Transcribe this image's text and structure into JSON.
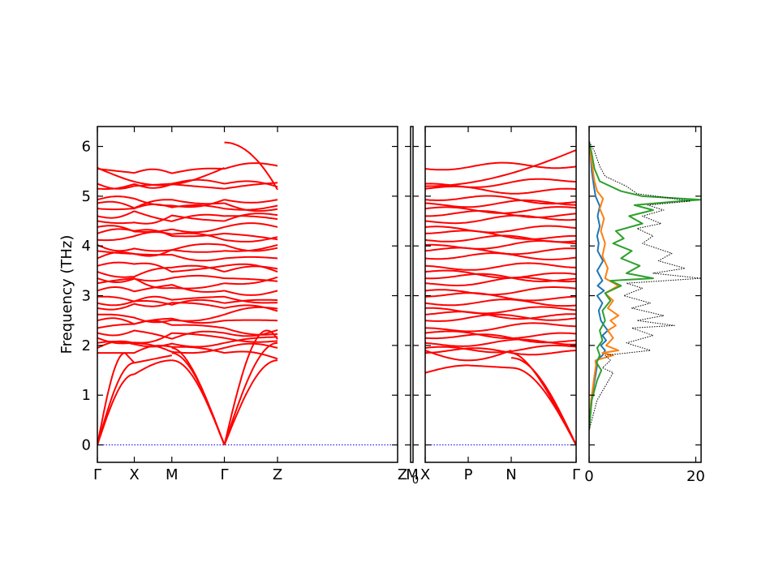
{
  "chart_data": {
    "type": "line",
    "ylabel": "Frequency (THz)",
    "ylim": [
      -0.35,
      6.4
    ],
    "yticks": [
      0,
      1,
      2,
      3,
      4,
      5,
      6
    ],
    "band_line_color": "#ff0000",
    "zero_line_color": "#0000ff",
    "segments": [
      {
        "labels": [
          "Γ",
          "X",
          "M",
          "Γ",
          "Z"
        ],
        "positions": [
          0,
          0.123,
          0.248,
          0.423,
          0.6
        ]
      },
      {
        "labels": [
          "Z0",
          "M"
        ],
        "positions": [
          0,
          1
        ]
      },
      {
        "labels": [
          "X",
          "P",
          "N",
          "Γ"
        ],
        "positions": [
          0,
          0.285,
          0.57,
          1
        ]
      }
    ],
    "band_samples": {
      "acoustic": {
        "gamma_x_m_gamma": [
          [
            0,
            0
          ],
          [
            0.12,
            1.4
          ],
          [
            0.25,
            1.7
          ],
          [
            0.42,
            0
          ]
        ],
        "gamma_z": [
          [
            0.42,
            0
          ],
          [
            0.6,
            1.7
          ]
        ],
        "x_p_n_gamma": [
          [
            0,
            1.45
          ],
          [
            0.285,
            1.6
          ],
          [
            0.57,
            1.6
          ],
          [
            1,
            0
          ]
        ]
      },
      "optical_band_frequencies": [
        1.85,
        1.95,
        2.05,
        2.15,
        2.25,
        2.35,
        2.5,
        2.62,
        2.75,
        2.85,
        2.98,
        3.1,
        3.25,
        3.35,
        3.48,
        3.6,
        3.75,
        3.9,
        4.02,
        4.12,
        4.25,
        4.38,
        4.5,
        4.6,
        4.75,
        4.86,
        4.93,
        5.15,
        5.25,
        5.55
      ]
    },
    "dos": {
      "xlim": [
        0,
        21
      ],
      "xticks": [
        0,
        20
      ],
      "series": [
        {
          "color": "#1f77b4",
          "style": "solid",
          "points": [
            [
              0,
              0.3
            ],
            [
              0.4,
              0.9
            ],
            [
              1.2,
              1.4
            ],
            [
              1.5,
              1.6
            ],
            [
              1.4,
              1.7
            ],
            [
              2.5,
              1.8
            ],
            [
              3,
              1.9
            ],
            [
              2.2,
              2.0
            ],
            [
              3.2,
              2.1
            ],
            [
              2.5,
              2.2
            ],
            [
              3.5,
              2.3
            ],
            [
              2.8,
              2.4
            ],
            [
              2.2,
              2.5
            ],
            [
              1.8,
              2.7
            ],
            [
              2.5,
              2.85
            ],
            [
              1.5,
              3.0
            ],
            [
              2.8,
              3.1
            ],
            [
              1.6,
              3.2
            ],
            [
              2.5,
              3.3
            ],
            [
              1.5,
              3.5
            ],
            [
              2.6,
              3.7
            ],
            [
              1.6,
              3.9
            ],
            [
              1.8,
              4.05
            ],
            [
              1.5,
              4.2
            ],
            [
              2.0,
              4.4
            ],
            [
              1.6,
              4.6
            ],
            [
              2.0,
              4.8
            ],
            [
              1.2,
              5.0
            ],
            [
              0.9,
              5.2
            ],
            [
              0.5,
              5.5
            ],
            [
              0.3,
              5.8
            ],
            [
              0,
              6.1
            ]
          ]
        },
        {
          "color": "#ff7f0e",
          "style": "solid",
          "points": [
            [
              0,
              0.3
            ],
            [
              0.4,
              0.9
            ],
            [
              1.0,
              1.4
            ],
            [
              1.3,
              1.6
            ],
            [
              1.2,
              1.7
            ],
            [
              4.5,
              1.8
            ],
            [
              2.5,
              1.85
            ],
            [
              5.5,
              1.9
            ],
            [
              3.2,
              2.0
            ],
            [
              4.5,
              2.15
            ],
            [
              3.5,
              2.3
            ],
            [
              5.0,
              2.4
            ],
            [
              4.0,
              2.5
            ],
            [
              5.5,
              2.6
            ],
            [
              3.5,
              2.75
            ],
            [
              4.5,
              2.9
            ],
            [
              3.0,
              3.05
            ],
            [
              5.5,
              3.2
            ],
            [
              3.0,
              3.35
            ],
            [
              3.5,
              3.55
            ],
            [
              2.5,
              3.8
            ],
            [
              3.0,
              4.05
            ],
            [
              2.2,
              4.3
            ],
            [
              2.8,
              4.55
            ],
            [
              2.0,
              4.75
            ],
            [
              2.6,
              4.95
            ],
            [
              1.5,
              5.1
            ],
            [
              1.0,
              5.3
            ],
            [
              0.6,
              5.6
            ],
            [
              0.2,
              5.9
            ],
            [
              0,
              6.1
            ]
          ]
        },
        {
          "color": "#2ca02c",
          "style": "solid",
          "points": [
            [
              0,
              0.3
            ],
            [
              0.5,
              0.9
            ],
            [
              1.5,
              1.3
            ],
            [
              2.3,
              1.5
            ],
            [
              1.4,
              1.65
            ],
            [
              2.0,
              1.8
            ],
            [
              1.5,
              1.95
            ],
            [
              2.5,
              2.1
            ],
            [
              2.0,
              2.3
            ],
            [
              3.0,
              2.5
            ],
            [
              2.5,
              2.7
            ],
            [
              4.0,
              2.9
            ],
            [
              3.0,
              3.05
            ],
            [
              6.0,
              3.2
            ],
            [
              4.0,
              3.3
            ],
            [
              12.0,
              3.35
            ],
            [
              7.0,
              3.45
            ],
            [
              9.5,
              3.6
            ],
            [
              6.0,
              3.75
            ],
            [
              8.0,
              3.9
            ],
            [
              4.5,
              4.05
            ],
            [
              6.5,
              4.15
            ],
            [
              5.0,
              4.3
            ],
            [
              10.0,
              4.45
            ],
            [
              7.5,
              4.6
            ],
            [
              12.0,
              4.72
            ],
            [
              8.5,
              4.82
            ],
            [
              17.0,
              4.9
            ],
            [
              21.0,
              4.93
            ],
            [
              10.0,
              5.0
            ],
            [
              6.0,
              5.1
            ],
            [
              2.0,
              5.3
            ],
            [
              1.0,
              5.55
            ],
            [
              0.5,
              5.85
            ],
            [
              0,
              6.1
            ]
          ]
        },
        {
          "color": "#000000",
          "style": "dotted",
          "points": [
            [
              0,
              0.3
            ],
            [
              1.5,
              0.9
            ],
            [
              4.5,
              1.45
            ],
            [
              2.5,
              1.55
            ],
            [
              4.0,
              1.7
            ],
            [
              3.0,
              1.8
            ],
            [
              11.5,
              1.9
            ],
            [
              7.0,
              2.05
            ],
            [
              12.0,
              2.2
            ],
            [
              8.0,
              2.35
            ],
            [
              16.0,
              2.4
            ],
            [
              9.0,
              2.5
            ],
            [
              14.0,
              2.6
            ],
            [
              8.0,
              2.75
            ],
            [
              11.5,
              2.85
            ],
            [
              6.5,
              3.0
            ],
            [
              10.0,
              3.15
            ],
            [
              7.0,
              3.25
            ],
            [
              21.0,
              3.35
            ],
            [
              12.0,
              3.45
            ],
            [
              18.0,
              3.55
            ],
            [
              13.0,
              3.7
            ],
            [
              15.5,
              3.85
            ],
            [
              10.0,
              4.05
            ],
            [
              12.0,
              4.2
            ],
            [
              9.0,
              4.35
            ],
            [
              13.5,
              4.45
            ],
            [
              10.0,
              4.6
            ],
            [
              14.0,
              4.72
            ],
            [
              11.0,
              4.82
            ],
            [
              19.0,
              4.9
            ],
            [
              14.0,
              4.98
            ],
            [
              9.0,
              5.05
            ],
            [
              7.0,
              5.2
            ],
            [
              3.0,
              5.4
            ],
            [
              2.0,
              5.6
            ],
            [
              1.0,
              5.9
            ],
            [
              0,
              6.1
            ]
          ]
        }
      ]
    }
  }
}
